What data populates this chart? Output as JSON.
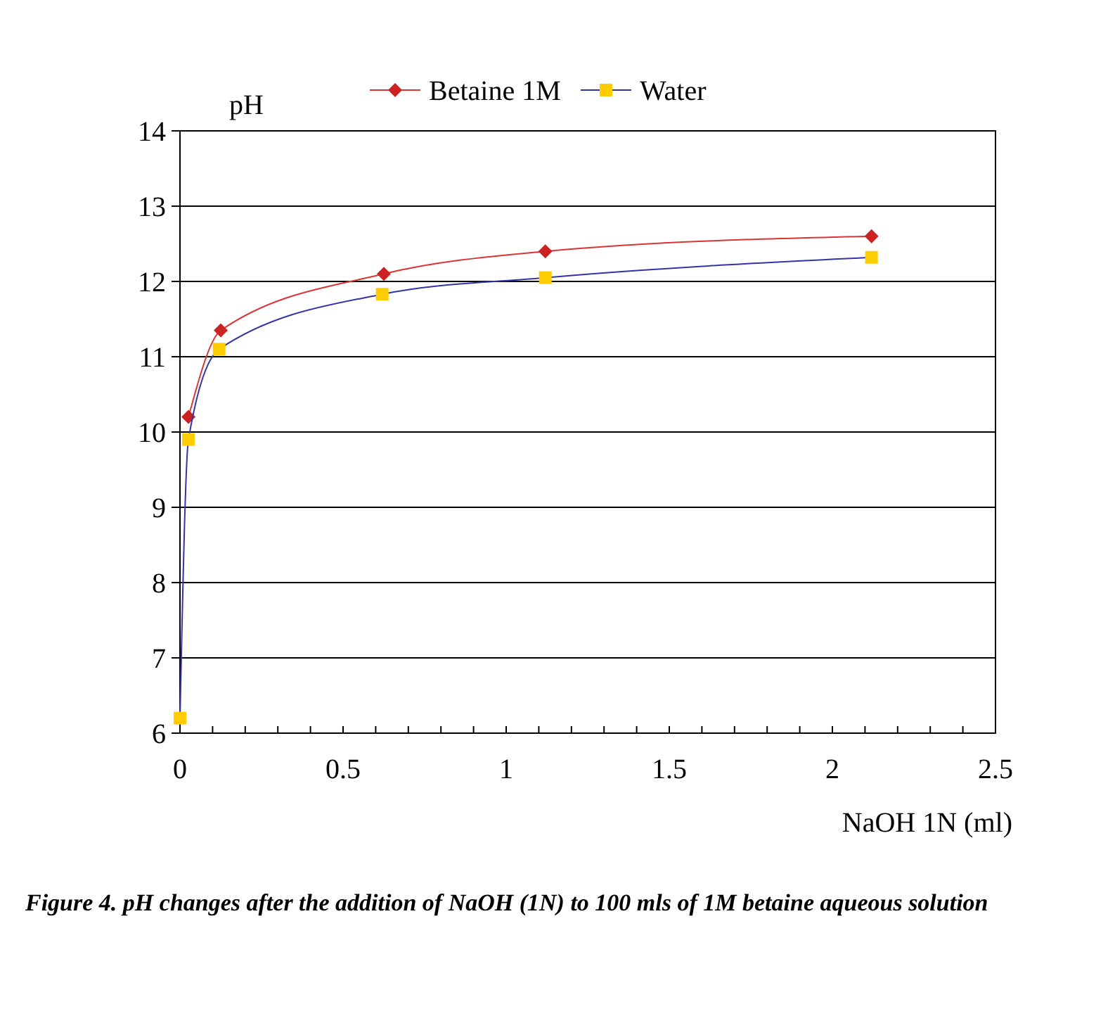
{
  "chart_data": {
    "type": "line",
    "xlabel": "NaOH 1N (ml)",
    "ylabel": "pH",
    "annotations": [
      "Figure 4. pH changes after the addition of NaOH (1N) to 100 mls of 1M betaine aqueous solution"
    ],
    "series": [
      {
        "name": "Betaine 1M",
        "color": "#dd3333",
        "colors": [
          "#cc2222",
          "#cc2222",
          "#cc2222",
          "#cc2222",
          "#cc2222"
        ],
        "marker": "diamond",
        "x": [
          0.026,
          0.125,
          0.625,
          1.12,
          2.12
        ],
        "values": [
          10.2,
          11.35,
          12.1,
          12.4,
          12.6
        ]
      },
      {
        "name": "Water",
        "color": "#3333aa",
        "colors": [
          "#ffcc00",
          "#ffcc00",
          "#ffcc00",
          "#ffcc00",
          "#ffcc00",
          "#ffcc00"
        ],
        "marker": "square",
        "x": [
          0,
          0.026,
          0.12,
          0.62,
          1.12,
          2.12
        ],
        "values": [
          6.2,
          9.9,
          11.1,
          11.83,
          12.05,
          12.32
        ]
      }
    ],
    "xlim": [
      0,
      2.5
    ],
    "ylim": [
      6,
      14
    ],
    "xticks": [
      0,
      {
        "value": 0.1,
        "label": null
      },
      {
        "value": 0.2,
        "label": null
      },
      {
        "value": 0.3,
        "label": null
      },
      {
        "value": 0.4,
        "label": null
      },
      0.5,
      {
        "value": 0.6,
        "label": null
      },
      {
        "value": 0.7,
        "label": null
      },
      {
        "value": 0.8,
        "label": null
      },
      {
        "value": 0.9,
        "label": null
      },
      1,
      {
        "value": 1.1,
        "label": null
      },
      {
        "value": 1.2,
        "label": null
      },
      {
        "value": 1.3,
        "label": null
      },
      {
        "value": 1.4,
        "label": null
      },
      1.5,
      {
        "value": 1.6,
        "label": null
      },
      {
        "value": 1.7,
        "label": null
      },
      {
        "value": 1.8,
        "label": null
      },
      {
        "value": 1.9,
        "label": null
      },
      2,
      {
        "value": 2.1,
        "label": null
      },
      {
        "value": 2.2,
        "label": null
      },
      {
        "value": 2.3,
        "label": null
      },
      {
        "value": 2.4,
        "label": null
      },
      2.5
    ],
    "yticks": [
      6,
      7,
      8,
      9,
      10,
      11,
      12,
      13,
      14
    ],
    "grid": "y",
    "legend": "top",
    "line_style": "solid"
  }
}
